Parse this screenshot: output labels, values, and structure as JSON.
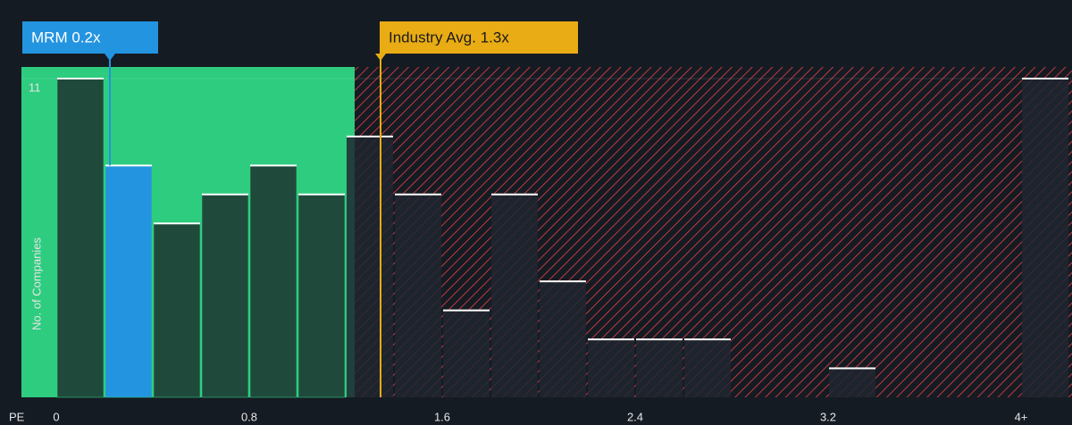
{
  "chart_data": {
    "type": "histogram",
    "bins": [
      0,
      0.2,
      0.4,
      0.6,
      0.8,
      1.0,
      1.2,
      1.4,
      1.6,
      1.8,
      2.0,
      2.2,
      2.4,
      2.6,
      2.8,
      3.0,
      3.2,
      3.4,
      3.6,
      3.8,
      4.0,
      4.2
    ],
    "values": [
      11,
      8,
      6,
      7,
      8,
      7,
      9,
      7,
      3,
      7,
      4,
      2,
      2,
      2,
      0,
      0,
      1,
      0,
      0,
      0,
      11
    ],
    "xlabel": "PE",
    "ylabel": "No. of Companies",
    "xlim": [
      0,
      4.2
    ],
    "ylim": [
      0,
      11.4
    ],
    "xticks": [
      0,
      0.8,
      1.6,
      2.4,
      3.2,
      {
        "value": 4,
        "label": "4+"
      }
    ],
    "yticks": [
      11
    ],
    "color": "#1f4a3b",
    "highlight_color": "#2394e0",
    "good_zone_color": "#2ecc7f",
    "bad_zone_color": "#c0393f",
    "markers": [
      {
        "label": "MRM 0.2x",
        "value": 0.2,
        "color": "#2394e0"
      },
      {
        "label": "Industry Avg. 1.3x",
        "value": 1.3,
        "color": "#e9ac14"
      }
    ]
  }
}
